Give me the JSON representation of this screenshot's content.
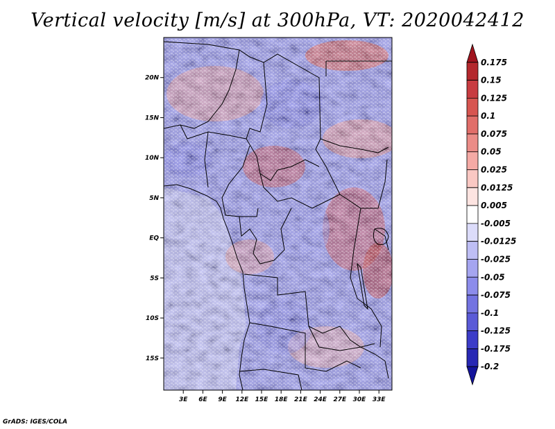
{
  "title": "Vertical velocity [m/s] at 300hPa, VT: 2020042412",
  "credit": "GrADS: IGES/COLA",
  "map": {
    "lat_labels": [
      "20N",
      "15N",
      "10N",
      "5N",
      "EQ",
      "5S",
      "10S",
      "15S"
    ],
    "lat_values": [
      20,
      15,
      10,
      5,
      0,
      -5,
      -10,
      -15
    ],
    "lon_labels": [
      "3E",
      "6E",
      "9E",
      "12E",
      "15E",
      "18E",
      "21E",
      "24E",
      "27E",
      "30E",
      "33E"
    ],
    "lon_values": [
      3,
      6,
      9,
      12,
      15,
      18,
      21,
      24,
      27,
      30,
      33
    ],
    "lon_range": [
      0,
      35
    ],
    "lat_range": [
      -19,
      25
    ]
  },
  "colorbar": {
    "labels": [
      "0.175",
      "0.15",
      "0.125",
      "0.1",
      "0.075",
      "0.05",
      "0.025",
      "0.0125",
      "0.005",
      "-0.005",
      "-0.0125",
      "-0.025",
      "-0.05",
      "-0.075",
      "-0.1",
      "-0.125",
      "-0.175",
      "-0.2"
    ],
    "colors": [
      "#a0141e",
      "#b4282d",
      "#c83c41",
      "#d75550",
      "#e16e69",
      "#eb8c87",
      "#f5aaa5",
      "#fac8c3",
      "#fde4e1",
      "#ffffff",
      "#dcdcfa",
      "#bebef5",
      "#a5a5f0",
      "#8c8ceb",
      "#7373e1",
      "#5a5ad7",
      "#3c3cc8",
      "#2828b4",
      "#14149b"
    ]
  }
}
